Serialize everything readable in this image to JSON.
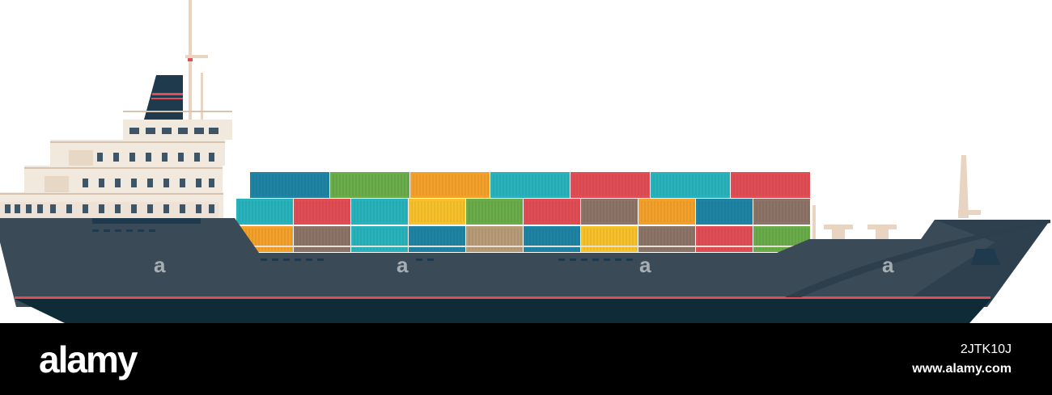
{
  "footer": {
    "brand": "alamy",
    "image_id": "2JTK10J",
    "site": "www.alamy.com"
  },
  "watermark": "a",
  "colors": {
    "hull": "#3a4a56",
    "hull_bottom": "#0f2b38",
    "waterline": "#e14d54",
    "superstructure": "#f1e9de",
    "funnel": "#1f3a4d",
    "mast": "#e8d4c0",
    "window": "#3d5566",
    "footer_bg": "#000000"
  },
  "containers": {
    "rows": [
      [
        "blue",
        "green",
        "orange",
        "teal",
        "red",
        "teal",
        "red"
      ],
      [
        "teal",
        "red",
        "teal",
        "yellow",
        "green",
        "red",
        "brown",
        "orange",
        "blue",
        "brown"
      ],
      [
        "orange",
        "brown",
        "teal",
        "blue",
        "tan",
        "blue",
        "yellow",
        "brown",
        "red",
        "green"
      ]
    ]
  }
}
